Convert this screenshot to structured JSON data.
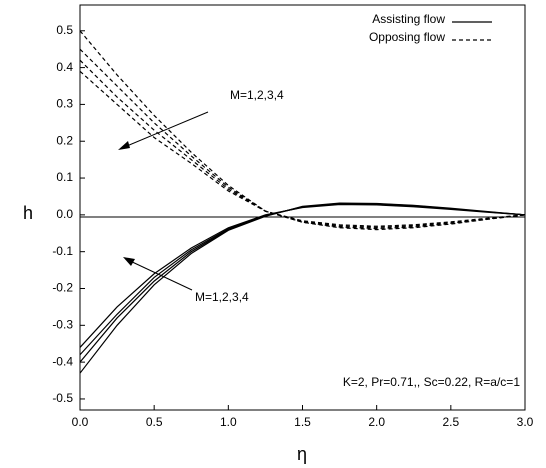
{
  "chart_data": {
    "type": "line",
    "x_label": "η",
    "y_label": "h",
    "xlim": [
      0,
      3
    ],
    "ylim": [
      -0.53,
      0.57
    ],
    "xticks": [
      {
        "value": 0,
        "label": "0.0"
      },
      0.5,
      {
        "value": 1,
        "label": "1.0"
      },
      1.5,
      {
        "value": 2,
        "label": "2.0"
      },
      2.5,
      {
        "value": 3,
        "label": "3.0"
      }
    ],
    "yticks": [
      -0.5,
      -0.4,
      -0.3,
      -0.2,
      -0.1,
      {
        "value": 0,
        "label": "0.0"
      },
      0.1,
      0.2,
      0.3,
      0.4,
      0.5
    ],
    "legend": "upper right",
    "x": [
      0,
      0.25,
      0.5,
      0.75,
      1.0,
      1.25,
      1.5,
      1.75,
      2.0,
      2.25,
      2.5,
      2.75,
      3.0
    ],
    "series": [
      {
        "name": "Assisting flow",
        "color": "#000000",
        "dashed": false,
        "curves": [
          [
            -0.36,
            -0.25,
            -0.16,
            -0.09,
            -0.035,
            0.0,
            0.02,
            0.028,
            0.027,
            0.022,
            0.015,
            0.007,
            0
          ],
          [
            -0.38,
            -0.27,
            -0.17,
            -0.095,
            -0.038,
            -0.002,
            0.021,
            0.03,
            0.029,
            0.024,
            0.016,
            0.008,
            0
          ],
          [
            -0.4,
            -0.28,
            -0.18,
            -0.1,
            -0.04,
            -0.003,
            0.022,
            0.031,
            0.03,
            0.025,
            0.017,
            0.008,
            0
          ],
          [
            -0.43,
            -0.3,
            -0.19,
            -0.105,
            -0.042,
            -0.004,
            0.023,
            0.032,
            0.031,
            0.026,
            0.018,
            0.009,
            0
          ]
        ]
      },
      {
        "name": "Opposing flow",
        "color": "#000000",
        "dashed": true,
        "curves": [
          [
            0.5,
            0.38,
            0.27,
            0.17,
            0.08,
            0.01,
            -0.02,
            -0.035,
            -0.04,
            -0.035,
            -0.025,
            -0.012,
            0
          ],
          [
            0.45,
            0.35,
            0.25,
            0.16,
            0.075,
            0.01,
            -0.02,
            -0.033,
            -0.037,
            -0.033,
            -0.023,
            -0.011,
            0
          ],
          [
            0.42,
            0.32,
            0.23,
            0.15,
            0.07,
            0.01,
            -0.018,
            -0.03,
            -0.034,
            -0.03,
            -0.021,
            -0.01,
            0
          ],
          [
            0.39,
            0.3,
            0.21,
            0.14,
            0.065,
            0.01,
            -0.016,
            -0.027,
            -0.031,
            -0.027,
            -0.019,
            -0.009,
            0
          ]
        ]
      }
    ],
    "annotations": [
      "M=1,2,3,4",
      "M=1,2,3,4",
      "K=2, Pr=0.71,, Sc=0.22, R=a/c=1"
    ]
  }
}
